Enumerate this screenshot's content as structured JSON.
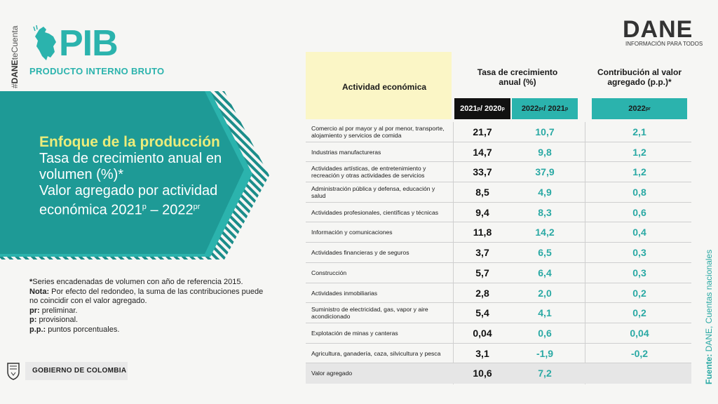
{
  "branding": {
    "hashtag_prefix": "#",
    "hashtag_bold": "DANE",
    "hashtag_rest": "teCuenta",
    "pib_word": "PIB",
    "pib_subtitle": "PRODUCTO INTERNO BRUTO",
    "dane_word": "DANE",
    "dane_subtitle": "INFORMACIÓN PARA TODOS",
    "gov_label": "GOBIERNO DE COLOMBIA",
    "accent_color": "#2bb3ad",
    "dark_teal": "#1b8d8a",
    "title_yellow": "#ecec7a"
  },
  "banner": {
    "title": "Enfoque de la producción",
    "line1": "Tasa de crecimiento anual en",
    "line2": "volumen (%)*",
    "line3": "Valor agregado por actividad",
    "line4": "económica 2021",
    "line4_sup1": "p",
    "line4_mid": " – 2022",
    "line4_sup2": "pr"
  },
  "notes": {
    "n1_bold": "*",
    "n1": "Series encadenadas de volumen con año de referencia 2015.",
    "n2_bold": "Nota:",
    "n2": " Por efecto del redondeo, la suma de las contribuciones puede no coincidir con el valor agregado.",
    "n3_bold": "pr:",
    "n3": " preliminar.",
    "n4_bold": "p:",
    "n4": " provisional.",
    "n5_bold": "p.p.:",
    "n5": " puntos porcentuales."
  },
  "source": {
    "label": "Fuente:",
    "text": " DANE, Cuentas nacionales"
  },
  "table": {
    "header_activity": "Actividad económica",
    "header_tasa_line1": "Tasa de crecimiento",
    "header_tasa_line2": "anual (%)",
    "header_contr_line1": "Contribución al valor",
    "header_contr_line2": "agregado (p.p.)*",
    "col1_a": "2021",
    "col1_a_sup": "p",
    "col1_b": " / 2020",
    "col1_b_sup": "p",
    "col2_a": "2022",
    "col2_a_sup": "pr",
    "col2_b": " / 2021",
    "col2_b_sup": "p",
    "col3_a": "2022",
    "col3_a_sup": "pr",
    "rows": [
      {
        "activity": "Comercio al por mayor y al por menor, transporte, alojamiento y servicios de comida",
        "v2021": "21,7",
        "v2022": "10,7",
        "contr": "2,1"
      },
      {
        "activity": "Industrias manufactureras",
        "v2021": "14,7",
        "v2022": "9,8",
        "contr": "1,2"
      },
      {
        "activity": "Actividades artísticas, de entretenimiento y recreación y otras actividades de servicios",
        "v2021": "33,7",
        "v2022": "37,9",
        "contr": "1,2"
      },
      {
        "activity": "Administración pública y defensa, educación y salud",
        "v2021": "8,5",
        "v2022": "4,9",
        "contr": "0,8"
      },
      {
        "activity": "Actividades profesionales, científicas y técnicas",
        "v2021": "9,4",
        "v2022": "8,3",
        "contr": "0,6"
      },
      {
        "activity": "Información y comunicaciones",
        "v2021": "11,8",
        "v2022": "14,2",
        "contr": "0,4"
      },
      {
        "activity": "Actividades financieras y de seguros",
        "v2021": "3,7",
        "v2022": "6,5",
        "contr": "0,3"
      },
      {
        "activity": "Construcción",
        "v2021": "5,7",
        "v2022": "6,4",
        "contr": "0,3"
      },
      {
        "activity": "Actividades inmobiliarias",
        "v2021": "2,8",
        "v2022": "2,0",
        "contr": "0,2"
      },
      {
        "activity": "Suministro de electricidad, gas, vapor y aire acondicionado",
        "v2021": "5,4",
        "v2022": "4,1",
        "contr": "0,2"
      },
      {
        "activity": "Explotación de minas y canteras",
        "v2021": "0,04",
        "v2022": "0,6",
        "contr": "0,04"
      },
      {
        "activity": "Agricultura, ganadería, caza, silvicultura y pesca",
        "v2021": "3,1",
        "v2022": "-1,9",
        "contr": "-0,2"
      },
      {
        "activity": "Valor agregado",
        "v2021": "10,6",
        "v2022": "7,2",
        "contr": ""
      }
    ]
  }
}
